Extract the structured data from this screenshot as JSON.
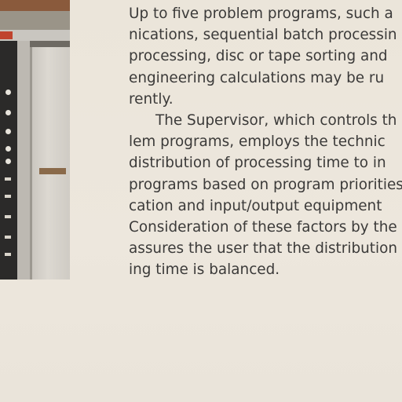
{
  "document": {
    "paragraph_1_lines": [
      "Up to five problem programs, such a",
      "nications, sequential batch processin",
      "processing, disc or tape sorting and",
      "engineering calculations may be ru",
      "rently."
    ],
    "paragraph_2_lines": [
      "The Supervisor, which controls th",
      "lem programs, employs the technic",
      "distribution of processing time to in",
      "programs based on program priorities",
      "cation and input/output equipment",
      "Consideration of these factors by the",
      "assures the user that the distribution",
      "ing time is balanced."
    ]
  },
  "colors": {
    "paper": "#ece6dc",
    "ink": "#3b3a39"
  }
}
